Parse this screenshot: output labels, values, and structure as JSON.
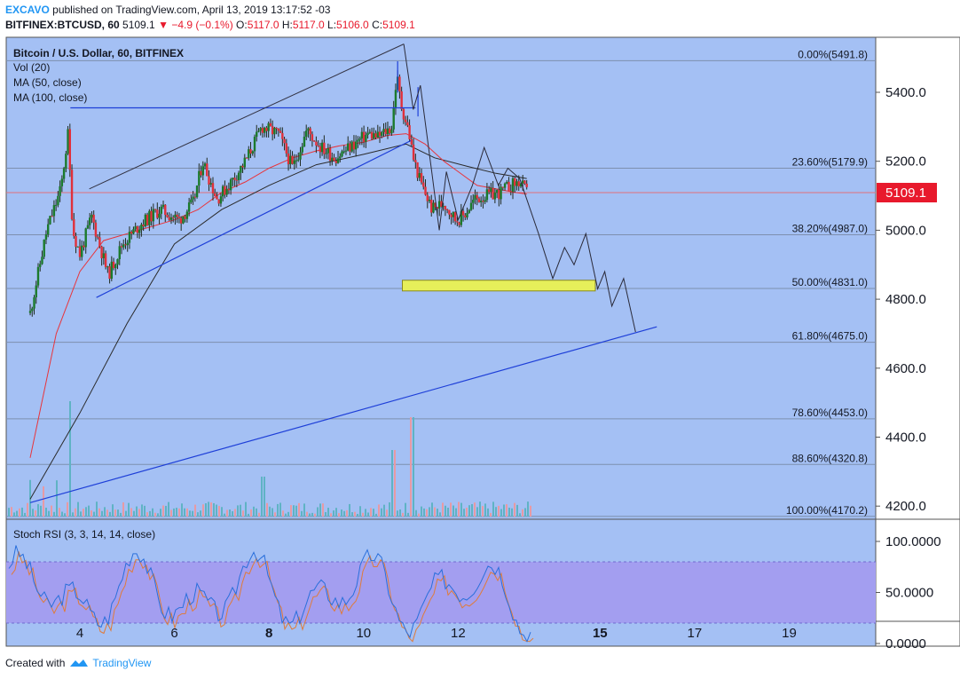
{
  "header": {
    "author": "EXCAVO",
    "published_text": "published on TradingView.com, April 13, 2019 13:17:52 -03",
    "symbol": "BITFINEX:BTCUSD, 60",
    "last": "5109.1",
    "change": "−4.9 (−0.1%)",
    "o_label": "O:",
    "o": "5117.0",
    "h_label": "H:",
    "h": "5117.0",
    "l_label": "L:",
    "l": "5106.0",
    "c_label": "C:",
    "c": "5109.1"
  },
  "legend": {
    "title": "Bitcoin / U.S. Dollar, 60, BITFINEX",
    "vol": "Vol (20)",
    "ma50": "MA (50, close)",
    "ma100": "MA (100, close)"
  },
  "footer": {
    "created_with": "Created with",
    "brand": "TradingView"
  },
  "colors": {
    "bg": "#a4c0f4",
    "up": "#1b7a2c",
    "down": "#e0303a",
    "ma50": "#e8343b",
    "ma100": "#2a2a2a",
    "trend": "#1e3fd8",
    "zone": "#e6ef5a",
    "rsi_band": "#a39ef0"
  },
  "chart_data": {
    "type": "candlestick",
    "x_ticks": [
      {
        "label": "4",
        "day": 4,
        "bold": false
      },
      {
        "label": "6",
        "day": 6,
        "bold": false
      },
      {
        "label": "8",
        "day": 8,
        "bold": true
      },
      {
        "label": "10",
        "day": 10,
        "bold": false
      },
      {
        "label": "12",
        "day": 12,
        "bold": false
      },
      {
        "label": "15",
        "day": 15,
        "bold": true
      },
      {
        "label": "17",
        "day": 17,
        "bold": false
      },
      {
        "label": "19",
        "day": 19,
        "bold": false
      }
    ],
    "y_ticks": [
      "5400.0",
      "5200.0",
      "5000.0",
      "4800.0",
      "4600.0",
      "4400.0",
      "4200.0"
    ],
    "y_values": [
      5400,
      5200,
      5000,
      4800,
      4600,
      4400,
      4200
    ],
    "last_price": {
      "label": "5109.1",
      "value": 5109.1
    },
    "fib_levels": [
      {
        "label": "0.00%(5491.8)",
        "value": 5491.8
      },
      {
        "label": "23.60%(5179.9)",
        "value": 5179.9
      },
      {
        "label": "38.20%(4987.0)",
        "value": 4987.0
      },
      {
        "label": "50.00%(4831.0)",
        "value": 4831.0
      },
      {
        "label": "61.80%(4675.0)",
        "value": 4675.0
      },
      {
        "label": "78.60%(4453.0)",
        "value": 4453.0
      },
      {
        "label": "88.60%(4320.8)",
        "value": 4320.8
      },
      {
        "label": "100.00%(4170.2)",
        "value": 4170.2
      }
    ],
    "price_path": [
      [
        2.95,
        4760
      ],
      [
        3.3,
        5000
      ],
      [
        3.6,
        5120
      ],
      [
        3.75,
        5280
      ],
      [
        3.85,
        5000
      ],
      [
        4.0,
        4930
      ],
      [
        4.25,
        5040
      ],
      [
        4.6,
        4870
      ],
      [
        4.9,
        4960
      ],
      [
        5.3,
        5020
      ],
      [
        5.7,
        5060
      ],
      [
        6.1,
        5030
      ],
      [
        6.4,
        5080
      ],
      [
        6.6,
        5200
      ],
      [
        6.9,
        5090
      ],
      [
        7.2,
        5140
      ],
      [
        7.5,
        5200
      ],
      [
        7.85,
        5300
      ],
      [
        8.2,
        5280
      ],
      [
        8.5,
        5180
      ],
      [
        8.8,
        5290
      ],
      [
        9.1,
        5240
      ],
      [
        9.4,
        5210
      ],
      [
        9.8,
        5250
      ],
      [
        10.1,
        5280
      ],
      [
        10.3,
        5270
      ],
      [
        10.6,
        5300
      ],
      [
        10.7,
        5450
      ],
      [
        10.8,
        5360
      ],
      [
        10.95,
        5290
      ],
      [
        11.05,
        5210
      ],
      [
        11.2,
        5140
      ],
      [
        11.45,
        5060
      ],
      [
        11.7,
        5080
      ],
      [
        11.95,
        5030
      ],
      [
        12.1,
        5040
      ],
      [
        12.35,
        5090
      ],
      [
        12.6,
        5100
      ],
      [
        12.9,
        5110
      ],
      [
        13.1,
        5130
      ],
      [
        13.3,
        5140
      ],
      [
        13.45,
        5109
      ]
    ],
    "ma50": [
      [
        2.95,
        4340
      ],
      [
        3.5,
        4700
      ],
      [
        4.0,
        4880
      ],
      [
        4.5,
        4970
      ],
      [
        5.0,
        4990
      ],
      [
        5.5,
        5010
      ],
      [
        6.0,
        5030
      ],
      [
        6.5,
        5060
      ],
      [
        7.0,
        5110
      ],
      [
        7.5,
        5140
      ],
      [
        8.0,
        5180
      ],
      [
        8.5,
        5210
      ],
      [
        9.0,
        5230
      ],
      [
        9.5,
        5245
      ],
      [
        10.0,
        5255
      ],
      [
        10.5,
        5275
      ],
      [
        10.9,
        5280
      ],
      [
        11.3,
        5250
      ],
      [
        11.7,
        5200
      ],
      [
        12.0,
        5170
      ],
      [
        12.4,
        5130
      ],
      [
        12.8,
        5120
      ],
      [
        13.2,
        5110
      ],
      [
        13.45,
        5105
      ]
    ],
    "ma100": [
      [
        2.95,
        4220
      ],
      [
        4.0,
        4470
      ],
      [
        5.0,
        4730
      ],
      [
        6.0,
        4960
      ],
      [
        7.0,
        5060
      ],
      [
        8.0,
        5130
      ],
      [
        9.0,
        5190
      ],
      [
        10.0,
        5220
      ],
      [
        10.9,
        5250
      ],
      [
        11.5,
        5210
      ],
      [
        12.2,
        5185
      ],
      [
        12.8,
        5165
      ],
      [
        13.45,
        5150
      ]
    ],
    "trendlines": [
      {
        "name": "rising",
        "points": [
          [
            2.95,
            4210
          ],
          [
            16.2,
            4720
          ]
        ]
      },
      {
        "name": "support",
        "points": [
          [
            4.35,
            4805
          ],
          [
            11.0,
            5260
          ]
        ]
      },
      {
        "name": "resistance",
        "points": [
          [
            3.8,
            5355
          ],
          [
            11.1,
            5355
          ]
        ]
      }
    ],
    "channel_top": [
      [
        4.2,
        5120
      ],
      [
        10.85,
        5540
      ]
    ],
    "projection": [
      [
        10.85,
        5540
      ],
      [
        11.05,
        5350
      ],
      [
        11.2,
        5420
      ],
      [
        11.45,
        5160
      ],
      [
        11.6,
        5000
      ],
      [
        11.75,
        5170
      ],
      [
        12.0,
        5030
      ],
      [
        12.3,
        5130
      ],
      [
        12.55,
        5240
      ],
      [
        12.85,
        5130
      ],
      [
        13.05,
        5180
      ],
      [
        13.3,
        5150
      ],
      [
        13.7,
        4990
      ],
      [
        14.0,
        4860
      ],
      [
        14.25,
        4950
      ],
      [
        14.45,
        4900
      ],
      [
        14.7,
        4990
      ],
      [
        14.95,
        4830
      ],
      [
        15.1,
        4880
      ],
      [
        15.25,
        4780
      ],
      [
        15.5,
        4860
      ],
      [
        15.75,
        4705
      ]
    ],
    "zone": {
      "x0": 10.82,
      "x1": 14.9,
      "y_hi": 4855,
      "y_lo": 4824
    },
    "rsi": {
      "label": "Stoch RSI (3, 3, 14, 14, close)",
      "ticks": [
        "100.0000",
        "50.0000",
        "0.0000"
      ],
      "tick_values": [
        100,
        50,
        0
      ],
      "band": [
        20,
        80
      ]
    }
  }
}
